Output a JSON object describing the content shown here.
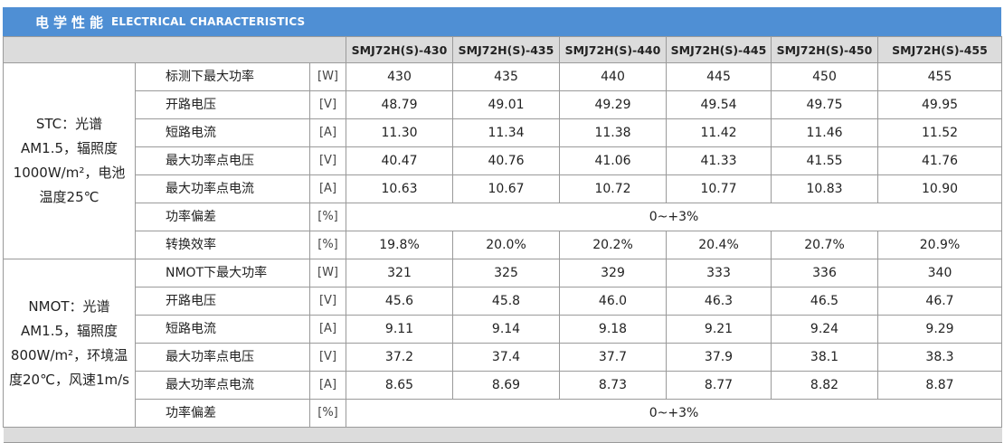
{
  "header": {
    "title_cn": "电学性能",
    "title_en": "ELECTRICAL CHARACTERISTICS"
  },
  "models": [
    "SMJ72H(S)-430",
    "SMJ72H(S)-435",
    "SMJ72H(S)-440",
    "SMJ72H(S)-445",
    "SMJ72H(S)-450",
    "SMJ72H(S)-455"
  ],
  "stc": {
    "condition": "STC：光谱AM1.5，辐照度1000W/m²，电池温度25℃",
    "rows": [
      {
        "param": "标测下最大功率",
        "unit": "[W]",
        "values": [
          "430",
          "435",
          "440",
          "445",
          "450",
          "455"
        ]
      },
      {
        "param": "开路电压",
        "unit": "[V]",
        "values": [
          "48.79",
          "49.01",
          "49.29",
          "49.54",
          "49.75",
          "49.95"
        ]
      },
      {
        "param": "短路电流",
        "unit": "[A]",
        "values": [
          "11.30",
          "11.34",
          "11.38",
          "11.42",
          "11.46",
          "11.52"
        ]
      },
      {
        "param": "最大功率点电压",
        "unit": "[V]",
        "values": [
          "40.47",
          "40.76",
          "41.06",
          "41.33",
          "41.55",
          "41.76"
        ]
      },
      {
        "param": "最大功率点电流",
        "unit": "[A]",
        "values": [
          "10.63",
          "10.67",
          "10.72",
          "10.77",
          "10.83",
          "10.90"
        ]
      },
      {
        "param": "功率偏差",
        "unit": "[%]",
        "merged": "0~+3%"
      },
      {
        "param": "转换效率",
        "unit": "[%]",
        "values": [
          "19.8%",
          "20.0%",
          "20.2%",
          "20.4%",
          "20.7%",
          "20.9%"
        ]
      }
    ]
  },
  "nmot": {
    "condition": "NMOT：光谱AM1.5，辐照度800W/m²，环境温度20℃，风速1m/s",
    "rows": [
      {
        "param": "NMOT下最大功率",
        "unit": "[W]",
        "values": [
          "321",
          "325",
          "329",
          "333",
          "336",
          "340"
        ]
      },
      {
        "param": "开路电压",
        "unit": "[V]",
        "values": [
          "45.6",
          "45.8",
          "46.0",
          "46.3",
          "46.5",
          "46.7"
        ]
      },
      {
        "param": "短路电流",
        "unit": "[A]",
        "values": [
          "9.11",
          "9.14",
          "9.18",
          "9.21",
          "9.24",
          "9.29"
        ]
      },
      {
        "param": "最大功率点电压",
        "unit": "[V]",
        "values": [
          "37.2",
          "37.4",
          "37.7",
          "37.9",
          "38.1",
          "38.3"
        ]
      },
      {
        "param": "最大功率点电流",
        "unit": "[A]",
        "values": [
          "8.65",
          "8.69",
          "8.73",
          "8.77",
          "8.82",
          "8.87"
        ]
      },
      {
        "param": "功率偏差",
        "unit": "[%]",
        "merged": "0~+3%"
      }
    ]
  }
}
